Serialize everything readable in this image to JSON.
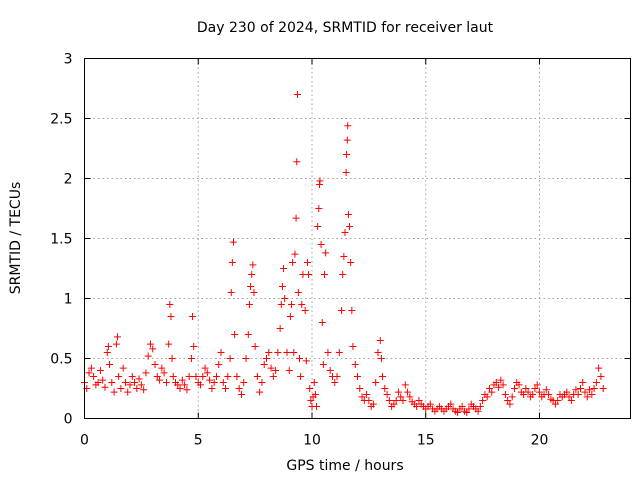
{
  "chart_data": {
    "type": "scatter",
    "title": "Day 230 of 2024, SRMTID for receiver laut",
    "xlabel": "GPS time / hours",
    "ylabel": "SRMTID / TECUs",
    "xlim": [
      0,
      24
    ],
    "ylim": [
      0,
      3
    ],
    "xticks": [
      0,
      5,
      10,
      15,
      20
    ],
    "xtick_labels": [
      "0",
      "5",
      "10",
      "15",
      "20"
    ],
    "yticks": [
      0,
      0.5,
      1,
      1.5,
      2,
      2.5,
      3
    ],
    "ytick_labels": [
      "0",
      "0.5",
      "1",
      "1.5",
      "2",
      "2.5",
      "3"
    ],
    "grid": true,
    "marker": "+",
    "marker_color": "#ff0000",
    "series": [
      {
        "name": "SRMTID",
        "points": [
          [
            0.0,
            0.3
          ],
          [
            0.1,
            0.25
          ],
          [
            0.2,
            0.38
          ],
          [
            0.3,
            0.42
          ],
          [
            0.4,
            0.35
          ],
          [
            0.5,
            0.28
          ],
          [
            0.6,
            0.3
          ],
          [
            0.7,
            0.4
          ],
          [
            0.8,
            0.32
          ],
          [
            0.9,
            0.26
          ],
          [
            1.0,
            0.55
          ],
          [
            1.05,
            0.6
          ],
          [
            1.1,
            0.45
          ],
          [
            1.2,
            0.3
          ],
          [
            1.3,
            0.22
          ],
          [
            1.4,
            0.62
          ],
          [
            1.45,
            0.68
          ],
          [
            1.5,
            0.35
          ],
          [
            1.6,
            0.25
          ],
          [
            1.7,
            0.42
          ],
          [
            1.8,
            0.3
          ],
          [
            1.9,
            0.22
          ],
          [
            2.0,
            0.28
          ],
          [
            2.1,
            0.35
          ],
          [
            2.2,
            0.3
          ],
          [
            2.3,
            0.25
          ],
          [
            2.4,
            0.33
          ],
          [
            2.5,
            0.28
          ],
          [
            2.6,
            0.24
          ],
          [
            2.7,
            0.38
          ],
          [
            2.8,
            0.52
          ],
          [
            2.9,
            0.62
          ],
          [
            3.0,
            0.58
          ],
          [
            3.1,
            0.45
          ],
          [
            3.2,
            0.35
          ],
          [
            3.3,
            0.32
          ],
          [
            3.4,
            0.42
          ],
          [
            3.5,
            0.38
          ],
          [
            3.6,
            0.3
          ],
          [
            3.7,
            0.62
          ],
          [
            3.75,
            0.95
          ],
          [
            3.8,
            0.85
          ],
          [
            3.85,
            0.5
          ],
          [
            3.9,
            0.35
          ],
          [
            4.0,
            0.3
          ],
          [
            4.1,
            0.28
          ],
          [
            4.2,
            0.25
          ],
          [
            4.3,
            0.32
          ],
          [
            4.4,
            0.28
          ],
          [
            4.5,
            0.24
          ],
          [
            4.6,
            0.35
          ],
          [
            4.7,
            0.5
          ],
          [
            4.75,
            0.85
          ],
          [
            4.8,
            0.6
          ],
          [
            4.9,
            0.35
          ],
          [
            5.0,
            0.3
          ],
          [
            5.1,
            0.28
          ],
          [
            5.2,
            0.35
          ],
          [
            5.3,
            0.42
          ],
          [
            5.4,
            0.38
          ],
          [
            5.5,
            0.32
          ],
          [
            5.6,
            0.25
          ],
          [
            5.7,
            0.3
          ],
          [
            5.8,
            0.35
          ],
          [
            5.9,
            0.45
          ],
          [
            6.0,
            0.55
          ],
          [
            6.1,
            0.3
          ],
          [
            6.2,
            0.25
          ],
          [
            6.3,
            0.35
          ],
          [
            6.4,
            0.5
          ],
          [
            6.45,
            1.05
          ],
          [
            6.5,
            1.3
          ],
          [
            6.55,
            1.47
          ],
          [
            6.6,
            0.7
          ],
          [
            6.7,
            0.35
          ],
          [
            6.8,
            0.25
          ],
          [
            6.9,
            0.2
          ],
          [
            7.0,
            0.3
          ],
          [
            7.1,
            0.5
          ],
          [
            7.2,
            0.7
          ],
          [
            7.25,
            0.95
          ],
          [
            7.3,
            1.1
          ],
          [
            7.35,
            1.2
          ],
          [
            7.4,
            1.28
          ],
          [
            7.45,
            1.05
          ],
          [
            7.5,
            0.6
          ],
          [
            7.6,
            0.35
          ],
          [
            7.7,
            0.22
          ],
          [
            7.8,
            0.3
          ],
          [
            7.9,
            0.45
          ],
          [
            8.0,
            0.5
          ],
          [
            8.1,
            0.55
          ],
          [
            8.2,
            0.42
          ],
          [
            8.3,
            0.35
          ],
          [
            8.4,
            0.4
          ],
          [
            8.5,
            0.55
          ],
          [
            8.6,
            0.75
          ],
          [
            8.65,
            0.95
          ],
          [
            8.7,
            1.1
          ],
          [
            8.75,
            1.25
          ],
          [
            8.8,
            1.0
          ],
          [
            8.9,
            0.55
          ],
          [
            9.0,
            0.4
          ],
          [
            9.05,
            0.85
          ],
          [
            9.1,
            0.95
          ],
          [
            9.15,
            1.3
          ],
          [
            9.2,
            0.55
          ],
          [
            9.25,
            1.37
          ],
          [
            9.3,
            1.67
          ],
          [
            9.33,
            2.14
          ],
          [
            9.36,
            2.7
          ],
          [
            9.4,
            1.05
          ],
          [
            9.45,
            0.5
          ],
          [
            9.5,
            0.35
          ],
          [
            9.55,
            0.95
          ],
          [
            9.6,
            1.2
          ],
          [
            9.7,
            0.9
          ],
          [
            9.75,
            0.48
          ],
          [
            9.8,
            1.3
          ],
          [
            9.85,
            1.2
          ],
          [
            9.9,
            0.25
          ],
          [
            9.95,
            0.15
          ],
          [
            10.0,
            0.1
          ],
          [
            10.05,
            0.18
          ],
          [
            10.1,
            0.3
          ],
          [
            10.15,
            0.2
          ],
          [
            10.2,
            0.1
          ],
          [
            10.25,
            1.6
          ],
          [
            10.3,
            1.75
          ],
          [
            10.33,
            1.95
          ],
          [
            10.35,
            1.98
          ],
          [
            10.4,
            1.45
          ],
          [
            10.45,
            0.8
          ],
          [
            10.5,
            0.45
          ],
          [
            10.55,
            1.2
          ],
          [
            10.6,
            1.38
          ],
          [
            10.7,
            0.55
          ],
          [
            10.8,
            0.4
          ],
          [
            10.9,
            0.35
          ],
          [
            11.0,
            0.3
          ],
          [
            11.1,
            0.35
          ],
          [
            11.2,
            0.55
          ],
          [
            11.3,
            0.9
          ],
          [
            11.35,
            1.2
          ],
          [
            11.4,
            1.35
          ],
          [
            11.45,
            1.55
          ],
          [
            11.5,
            2.05
          ],
          [
            11.52,
            2.2
          ],
          [
            11.55,
            2.32
          ],
          [
            11.57,
            2.44
          ],
          [
            11.6,
            1.7
          ],
          [
            11.65,
            1.6
          ],
          [
            11.7,
            1.3
          ],
          [
            11.75,
            0.9
          ],
          [
            11.8,
            0.6
          ],
          [
            11.9,
            0.45
          ],
          [
            12.0,
            0.35
          ],
          [
            12.1,
            0.25
          ],
          [
            12.2,
            0.18
          ],
          [
            12.3,
            0.15
          ],
          [
            12.4,
            0.2
          ],
          [
            12.5,
            0.15
          ],
          [
            12.6,
            0.1
          ],
          [
            12.7,
            0.12
          ],
          [
            12.8,
            0.3
          ],
          [
            12.9,
            0.55
          ],
          [
            13.0,
            0.65
          ],
          [
            13.05,
            0.5
          ],
          [
            13.1,
            0.35
          ],
          [
            13.2,
            0.25
          ],
          [
            13.3,
            0.2
          ],
          [
            13.4,
            0.15
          ],
          [
            13.5,
            0.1
          ],
          [
            13.6,
            0.12
          ],
          [
            13.7,
            0.15
          ],
          [
            13.8,
            0.22
          ],
          [
            13.9,
            0.18
          ],
          [
            14.0,
            0.15
          ],
          [
            14.1,
            0.28
          ],
          [
            14.2,
            0.22
          ],
          [
            14.3,
            0.18
          ],
          [
            14.4,
            0.14
          ],
          [
            14.5,
            0.12
          ],
          [
            14.6,
            0.1
          ],
          [
            14.7,
            0.15
          ],
          [
            14.8,
            0.12
          ],
          [
            14.9,
            0.1
          ],
          [
            15.0,
            0.08
          ],
          [
            15.1,
            0.1
          ],
          [
            15.2,
            0.12
          ],
          [
            15.3,
            0.08
          ],
          [
            15.4,
            0.06
          ],
          [
            15.5,
            0.08
          ],
          [
            15.6,
            0.1
          ],
          [
            15.7,
            0.08
          ],
          [
            15.8,
            0.06
          ],
          [
            15.9,
            0.08
          ],
          [
            16.0,
            0.1
          ],
          [
            16.1,
            0.12
          ],
          [
            16.2,
            0.08
          ],
          [
            16.3,
            0.06
          ],
          [
            16.4,
            0.05
          ],
          [
            16.5,
            0.08
          ],
          [
            16.6,
            0.1
          ],
          [
            16.7,
            0.06
          ],
          [
            16.8,
            0.05
          ],
          [
            16.9,
            0.08
          ],
          [
            17.0,
            0.12
          ],
          [
            17.1,
            0.1
          ],
          [
            17.2,
            0.08
          ],
          [
            17.3,
            0.06
          ],
          [
            17.4,
            0.1
          ],
          [
            17.5,
            0.15
          ],
          [
            17.6,
            0.2
          ],
          [
            17.7,
            0.18
          ],
          [
            17.8,
            0.25
          ],
          [
            17.9,
            0.22
          ],
          [
            18.0,
            0.28
          ],
          [
            18.1,
            0.3
          ],
          [
            18.2,
            0.26
          ],
          [
            18.3,
            0.32
          ],
          [
            18.4,
            0.28
          ],
          [
            18.5,
            0.2
          ],
          [
            18.6,
            0.15
          ],
          [
            18.7,
            0.12
          ],
          [
            18.8,
            0.18
          ],
          [
            18.9,
            0.25
          ],
          [
            19.0,
            0.3
          ],
          [
            19.1,
            0.28
          ],
          [
            19.2,
            0.22
          ],
          [
            19.3,
            0.2
          ],
          [
            19.4,
            0.25
          ],
          [
            19.5,
            0.22
          ],
          [
            19.6,
            0.18
          ],
          [
            19.7,
            0.2
          ],
          [
            19.8,
            0.25
          ],
          [
            19.9,
            0.28
          ],
          [
            20.0,
            0.22
          ],
          [
            20.1,
            0.18
          ],
          [
            20.2,
            0.2
          ],
          [
            20.3,
            0.24
          ],
          [
            20.4,
            0.2
          ],
          [
            20.5,
            0.16
          ],
          [
            20.6,
            0.15
          ],
          [
            20.7,
            0.12
          ],
          [
            20.8,
            0.15
          ],
          [
            20.9,
            0.2
          ],
          [
            21.0,
            0.18
          ],
          [
            21.1,
            0.2
          ],
          [
            21.2,
            0.22
          ],
          [
            21.3,
            0.18
          ],
          [
            21.4,
            0.15
          ],
          [
            21.5,
            0.2
          ],
          [
            21.6,
            0.24
          ],
          [
            21.7,
            0.2
          ],
          [
            21.8,
            0.25
          ],
          [
            21.9,
            0.3
          ],
          [
            22.0,
            0.22
          ],
          [
            22.1,
            0.18
          ],
          [
            22.2,
            0.24
          ],
          [
            22.3,
            0.2
          ],
          [
            22.4,
            0.25
          ],
          [
            22.5,
            0.3
          ],
          [
            22.6,
            0.42
          ],
          [
            22.7,
            0.35
          ],
          [
            22.8,
            0.25
          ]
        ]
      }
    ]
  }
}
